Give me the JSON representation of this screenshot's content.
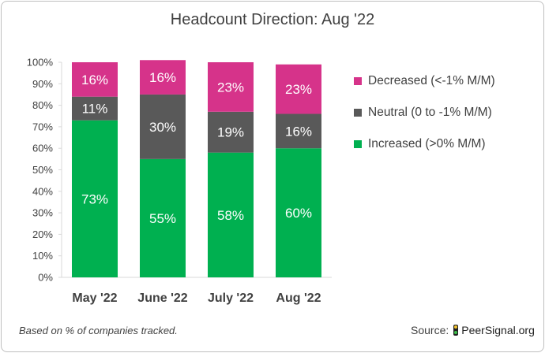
{
  "chart_data": {
    "type": "stacked-bar-100",
    "title": "Headcount Direction: Aug '22",
    "categories": [
      "May '22",
      "June '22",
      "July '22",
      "Aug '22"
    ],
    "series": [
      {
        "name": "Increased (>0% M/M)",
        "color": "#00b050",
        "values": [
          73,
          55,
          58,
          60
        ]
      },
      {
        "name": "Neutral (0 to -1% M/M)",
        "color": "#595959",
        "values": [
          11,
          30,
          19,
          16
        ]
      },
      {
        "name": "Decreased (<-1% M/M)",
        "color": "#d6338a",
        "values": [
          16,
          16,
          23,
          23
        ]
      }
    ],
    "value_labels": [
      [
        "73%",
        "55%",
        "58%",
        "60%"
      ],
      [
        "11%",
        "30%",
        "19%",
        "16%"
      ],
      [
        "16%",
        "16%",
        "23%",
        "23%"
      ]
    ],
    "ylim": [
      0,
      100
    ],
    "yticks": [
      "0%",
      "10%",
      "20%",
      "30%",
      "40%",
      "50%",
      "60%",
      "70%",
      "80%",
      "90%",
      "100%"
    ],
    "legend": [
      "Decreased (<-1% M/M)",
      "Neutral (0 to -1% M/M)",
      "Increased (>0% M/M)"
    ],
    "legend_position": "right",
    "grid": false
  },
  "footnote": "Based on % of companies tracked.",
  "source_label": "Source:",
  "source_brand": "PeerSignal.org",
  "source_icon": "traffic-light-icon"
}
